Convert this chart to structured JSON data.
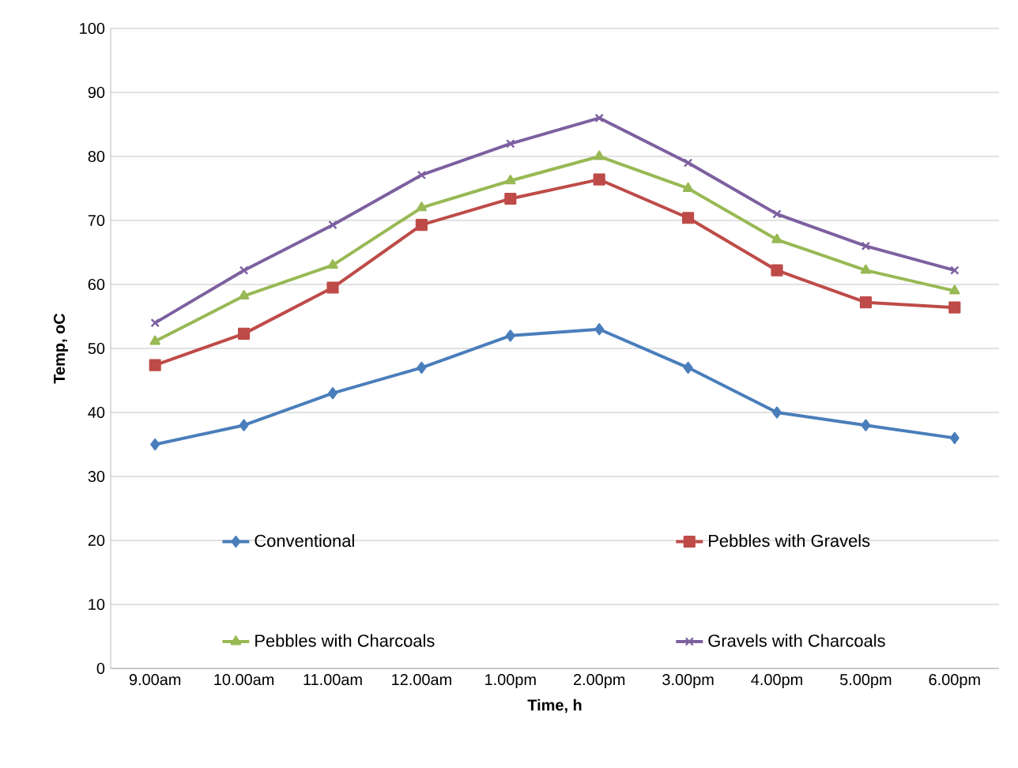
{
  "chart_data": {
    "type": "line",
    "xlabel": "Time, h",
    "ylabel": "Temp, oC",
    "categories": [
      "9.00am",
      "10.00am",
      "11.00am",
      "12.00am",
      "1.00pm",
      "2.00pm",
      "3.00pm",
      "4.00pm",
      "5.00pm",
      "6.00pm"
    ],
    "series": [
      {
        "name": "Conventional",
        "color": "#4a7ebb",
        "marker": "diamond",
        "values": [
          35,
          38,
          43,
          47,
          52,
          53,
          47,
          40,
          38,
          36
        ]
      },
      {
        "name": "Pebbles with Gravels",
        "color": "#be4b48",
        "marker": "square",
        "values": [
          47.4,
          52.3,
          59.5,
          69.3,
          73.4,
          76.4,
          70.4,
          62.2,
          57.2,
          56.4
        ]
      },
      {
        "name": "Pebbles with Charcoals",
        "color": "#98b954",
        "marker": "triangle",
        "values": [
          51.1,
          58.2,
          63,
          72,
          76.2,
          80,
          75,
          67,
          62.2,
          59
        ]
      },
      {
        "name": "Gravels with Charcoals",
        "color": "#7d60a0",
        "marker": "cross",
        "values": [
          54,
          62.2,
          69.3,
          77.1,
          82,
          86,
          79,
          71,
          66,
          62.2
        ]
      }
    ],
    "ylim": [
      0,
      100
    ],
    "yticks": [
      0,
      10,
      20,
      30,
      40,
      50,
      60,
      70,
      80,
      90,
      100
    ],
    "grid": "y",
    "legend": "bottom"
  }
}
